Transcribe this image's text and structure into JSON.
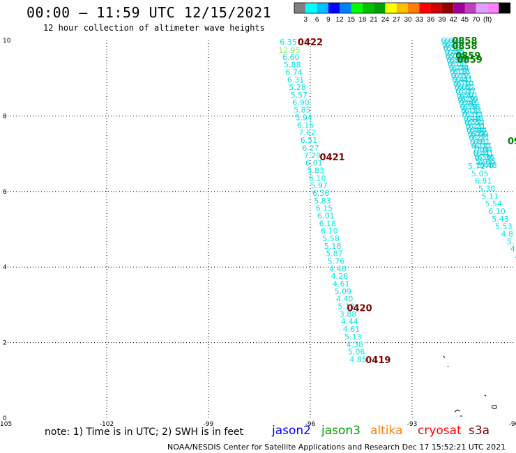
{
  "header": {
    "title": "00:00 – 11:59 UTC 12/15/2021",
    "subtitle": "12 hour collection of altimeter wave heights"
  },
  "colorbar": {
    "ticks": [
      "3",
      "6",
      "9",
      "12",
      "15",
      "18",
      "21",
      "24",
      "27",
      "30",
      "33",
      "36",
      "39",
      "42",
      "45",
      "70",
      "(ft)"
    ],
    "colors": [
      "#808080",
      "#00ffff",
      "#00bfff",
      "#0000ff",
      "#0080ff",
      "#00ff00",
      "#00c000",
      "#00a000",
      "#ffff00",
      "#ffc000",
      "#ff8000",
      "#ff0000",
      "#d00000",
      "#900000",
      "#a000a0",
      "#c040c0",
      "#e0a0ff",
      "#ff80ff",
      "#000000"
    ]
  },
  "footer": {
    "note": "note: 1) Time is in UTC; 2) SWH is in feet",
    "satellites": [
      {
        "name": "jason2",
        "color": "#0000ff"
      },
      {
        "name": "jason3",
        "color": "#00a000"
      },
      {
        "name": "altika",
        "color": "#ff8000"
      },
      {
        "name": "cryosat",
        "color": "#ff0000"
      },
      {
        "name": "s3a",
        "color": "#800000"
      }
    ],
    "credit": "NOAA/NESDIS Center for Satellite Applications and Research    Dec 17 15:52:21 UTC 2021"
  },
  "chart_data": {
    "type": "scatter",
    "title": "00:00 – 11:59 UTC 12/15/2021",
    "subtitle": "12 hour collection of altimeter wave heights",
    "xlabel": "",
    "ylabel": "",
    "xlim": [
      -105,
      -90
    ],
    "ylim": [
      0,
      10
    ],
    "x_ticks": [
      -105,
      -102,
      -99,
      -96,
      -93,
      -90
    ],
    "y_ticks": [
      0,
      2,
      4,
      6,
      8,
      10
    ],
    "x_tick_labels": [
      "-105",
      "-102",
      "-99",
      "-96",
      "-93",
      "-90"
    ],
    "y_tick_labels": [
      "0",
      "2",
      "4",
      "6",
      "8",
      "10"
    ],
    "grid": true,
    "units": "ft",
    "series": [
      {
        "name": "",
        "color": "#00e5e5",
        "points": [
          {
            "x": -96.65,
            "y": 9.96,
            "label": "6.35"
          },
          {
            "x": -96.62,
            "y": 9.74,
            "label": "12.95",
            "color": "#88ee66"
          },
          {
            "x": -96.57,
            "y": 9.56,
            "label": "6.60"
          },
          {
            "x": -96.53,
            "y": 9.36,
            "label": "5.88"
          },
          {
            "x": -96.48,
            "y": 9.16,
            "label": "6.74"
          },
          {
            "x": -96.43,
            "y": 8.96,
            "label": "6.31"
          },
          {
            "x": -96.38,
            "y": 8.76,
            "label": "5.28"
          },
          {
            "x": -96.33,
            "y": 8.56,
            "label": "5.57"
          },
          {
            "x": -96.28,
            "y": 8.36,
            "label": "6.90"
          },
          {
            "x": -96.24,
            "y": 8.16,
            "label": "5.85"
          },
          {
            "x": -96.19,
            "y": 7.96,
            "label": "5.94"
          },
          {
            "x": -96.14,
            "y": 7.76,
            "label": "6.16"
          },
          {
            "x": -96.09,
            "y": 7.56,
            "label": "7.62"
          },
          {
            "x": -96.04,
            "y": 7.36,
            "label": "6.51"
          },
          {
            "x": -95.99,
            "y": 7.16,
            "label": "6.27"
          },
          {
            "x": -95.94,
            "y": 6.96,
            "label": "7.29"
          },
          {
            "x": -95.89,
            "y": 6.76,
            "label": "6.01"
          },
          {
            "x": -95.84,
            "y": 6.56,
            "label": "5.83"
          },
          {
            "x": -95.79,
            "y": 6.36,
            "label": "6.10"
          },
          {
            "x": -95.74,
            "y": 6.16,
            "label": "5.97"
          },
          {
            "x": -95.69,
            "y": 5.96,
            "label": "6.36"
          },
          {
            "x": -95.64,
            "y": 5.76,
            "label": "5.83"
          },
          {
            "x": -95.59,
            "y": 5.56,
            "label": "6.15"
          },
          {
            "x": -95.54,
            "y": 5.36,
            "label": "6.01"
          },
          {
            "x": -95.49,
            "y": 5.16,
            "label": "6.18"
          },
          {
            "x": -95.44,
            "y": 4.96,
            "label": "6.10"
          },
          {
            "x": -95.39,
            "y": 4.76,
            "label": "5.58"
          },
          {
            "x": -95.34,
            "y": 4.56,
            "label": "5.18"
          },
          {
            "x": -95.29,
            "y": 4.36,
            "label": "5.87"
          },
          {
            "x": -95.24,
            "y": 4.16,
            "label": "5.76"
          },
          {
            "x": -95.19,
            "y": 3.96,
            "label": "4.46"
          },
          {
            "x": -95.14,
            "y": 3.76,
            "label": "4.26"
          },
          {
            "x": -95.09,
            "y": 3.56,
            "label": "4.61"
          },
          {
            "x": -95.04,
            "y": 3.36,
            "label": "5.09"
          },
          {
            "x": -94.99,
            "y": 3.16,
            "label": "4.40"
          },
          {
            "x": -94.94,
            "y": 2.96,
            "label": "5.18"
          },
          {
            "x": -94.89,
            "y": 2.76,
            "label": "3.88"
          },
          {
            "x": -94.84,
            "y": 2.56,
            "label": "4.44"
          },
          {
            "x": -94.79,
            "y": 2.36,
            "label": "4.61"
          },
          {
            "x": -94.74,
            "y": 2.16,
            "label": "5.13"
          },
          {
            "x": -94.69,
            "y": 1.96,
            "label": "4.38"
          },
          {
            "x": -94.64,
            "y": 1.76,
            "label": "5.06"
          },
          {
            "x": -94.59,
            "y": 1.56,
            "label": "4.85"
          }
        ]
      },
      {
        "name": "",
        "color": "#00e5e5",
        "points": [
          {
            "x": -91.1,
            "y": 6.68,
            "label": "5.72"
          },
          {
            "x": -91.0,
            "y": 6.48,
            "label": "5.05"
          },
          {
            "x": -90.9,
            "y": 6.28,
            "label": "6.81"
          },
          {
            "x": -90.8,
            "y": 6.08,
            "label": "5.30"
          },
          {
            "x": -90.7,
            "y": 5.88,
            "label": "5.11"
          },
          {
            "x": -90.6,
            "y": 5.68,
            "label": "5.54"
          },
          {
            "x": -90.5,
            "y": 5.48,
            "label": "6.10"
          },
          {
            "x": -90.4,
            "y": 5.28,
            "label": "5.43"
          },
          {
            "x": -90.3,
            "y": 5.08,
            "label": "5.53"
          },
          {
            "x": -90.2,
            "y": 4.88,
            "label": "4.8"
          },
          {
            "x": -90.1,
            "y": 4.68,
            "label": "5."
          },
          {
            "x": -90.0,
            "y": 4.48,
            "label": "4."
          },
          {
            "x": -89.9,
            "y": 4.28,
            "label": "4"
          }
        ]
      }
    ],
    "time_labels": [
      {
        "x": -96.0,
        "y": 9.96,
        "label": "0422",
        "color": "#800000"
      },
      {
        "x": -95.35,
        "y": 6.92,
        "label": "0421",
        "color": "#800000"
      },
      {
        "x": -94.55,
        "y": 2.92,
        "label": "0420",
        "color": "#800000"
      },
      {
        "x": -94.0,
        "y": 1.55,
        "label": "0419",
        "color": "#800000"
      },
      {
        "x": -91.45,
        "y": 10.0,
        "label": "0858",
        "color": "#008000"
      },
      {
        "x": -91.45,
        "y": 9.86,
        "label": "0858",
        "color": "#008000"
      },
      {
        "x": -91.35,
        "y": 9.6,
        "label": "0859",
        "color": "#008000"
      },
      {
        "x": -91.3,
        "y": 9.5,
        "label": "0859",
        "color": "#008000"
      },
      {
        "x": -90.0,
        "y": 7.34,
        "label": "09",
        "color": "#008000"
      }
    ],
    "dense_track_labels": [
      "6.63",
      "6.97",
      "6.36",
      "6.42",
      "6.05",
      "6.38",
      "6.11",
      "6.24",
      "6.18",
      "6.55",
      "6.41",
      "6.70",
      "6.62",
      "6.37",
      "6.50",
      "6.29",
      "6.46",
      "6.58",
      "6.13",
      "6.33",
      "6.48",
      "6.52",
      "6.21",
      "6.44",
      "6.09",
      "6.27",
      "6.61",
      "6.17",
      "7.04",
      "6.41",
      "6.36",
      "5.95",
      "5.48"
    ]
  }
}
